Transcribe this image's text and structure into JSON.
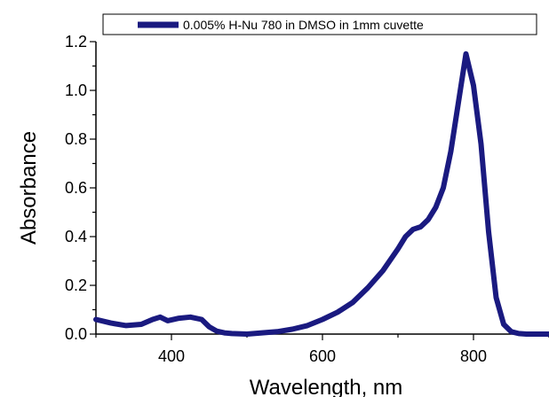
{
  "chart_data": {
    "type": "line",
    "title": "",
    "xlabel": "Wavelength, nm",
    "ylabel": "Absorbance",
    "xlim": [
      300,
      900
    ],
    "ylim": [
      0,
      1.2
    ],
    "xticks": [
      400,
      600,
      800
    ],
    "yticks": [
      0.0,
      0.2,
      0.4,
      0.6,
      0.8,
      1.0,
      1.2
    ],
    "ytick_labels": [
      "0.0",
      "0.2",
      "0.4",
      "0.6",
      "0.8",
      "1.0",
      "1.2"
    ],
    "legend_position": "top",
    "series": [
      {
        "name": "0.005% H-Nu 780 in DMSO in 1mm cuvette",
        "color": "#1a1a80",
        "x": [
          300,
          320,
          340,
          360,
          375,
          385,
          395,
          410,
          425,
          440,
          450,
          460,
          470,
          480,
          500,
          520,
          540,
          560,
          580,
          600,
          620,
          640,
          660,
          680,
          700,
          710,
          720,
          730,
          740,
          750,
          760,
          770,
          780,
          790,
          800,
          810,
          820,
          830,
          840,
          850,
          860,
          870,
          880,
          890,
          900
        ],
        "y": [
          0.06,
          0.045,
          0.035,
          0.04,
          0.06,
          0.07,
          0.055,
          0.065,
          0.07,
          0.06,
          0.03,
          0.012,
          0.005,
          0.002,
          0.0,
          0.005,
          0.01,
          0.02,
          0.035,
          0.06,
          0.09,
          0.13,
          0.19,
          0.26,
          0.35,
          0.4,
          0.43,
          0.44,
          0.47,
          0.52,
          0.6,
          0.75,
          0.95,
          1.15,
          1.02,
          0.78,
          0.42,
          0.15,
          0.04,
          0.01,
          0.002,
          0.0,
          0.0,
          0.0,
          0.0
        ]
      }
    ]
  }
}
